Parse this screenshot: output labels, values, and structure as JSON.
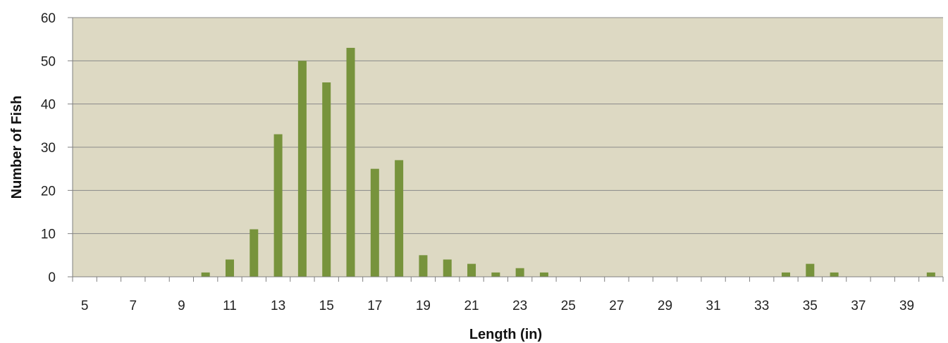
{
  "chart_data": {
    "type": "bar",
    "title": "",
    "xlabel": "Length (in)",
    "ylabel": "Number of Fish",
    "ylim": [
      0,
      60
    ],
    "yticks": [
      0,
      10,
      20,
      30,
      40,
      50,
      60
    ],
    "grid": true,
    "legend": "none",
    "categories": [
      5,
      6,
      7,
      8,
      9,
      10,
      11,
      12,
      13,
      14,
      15,
      16,
      17,
      18,
      19,
      20,
      21,
      22,
      23,
      24,
      25,
      26,
      27,
      28,
      29,
      30,
      31,
      32,
      33,
      34,
      35,
      36,
      37,
      38,
      39,
      40
    ],
    "xtick_labels": [
      "5",
      "7",
      "9",
      "11",
      "13",
      "15",
      "17",
      "19",
      "21",
      "23",
      "25",
      "27",
      "29",
      "31",
      "33",
      "35",
      "37",
      "39"
    ],
    "values": [
      0,
      0,
      0,
      0,
      0,
      1,
      4,
      11,
      33,
      50,
      45,
      53,
      25,
      27,
      5,
      4,
      3,
      1,
      2,
      1,
      0,
      0,
      0,
      0,
      0,
      0,
      0,
      0,
      0,
      1,
      3,
      1,
      0,
      0,
      0,
      1
    ],
    "colors": {
      "bar": "#77933c",
      "plot_background": "#ddd9c3",
      "gridline": "#8a8a8a",
      "axis": "#7f7f7f"
    }
  }
}
